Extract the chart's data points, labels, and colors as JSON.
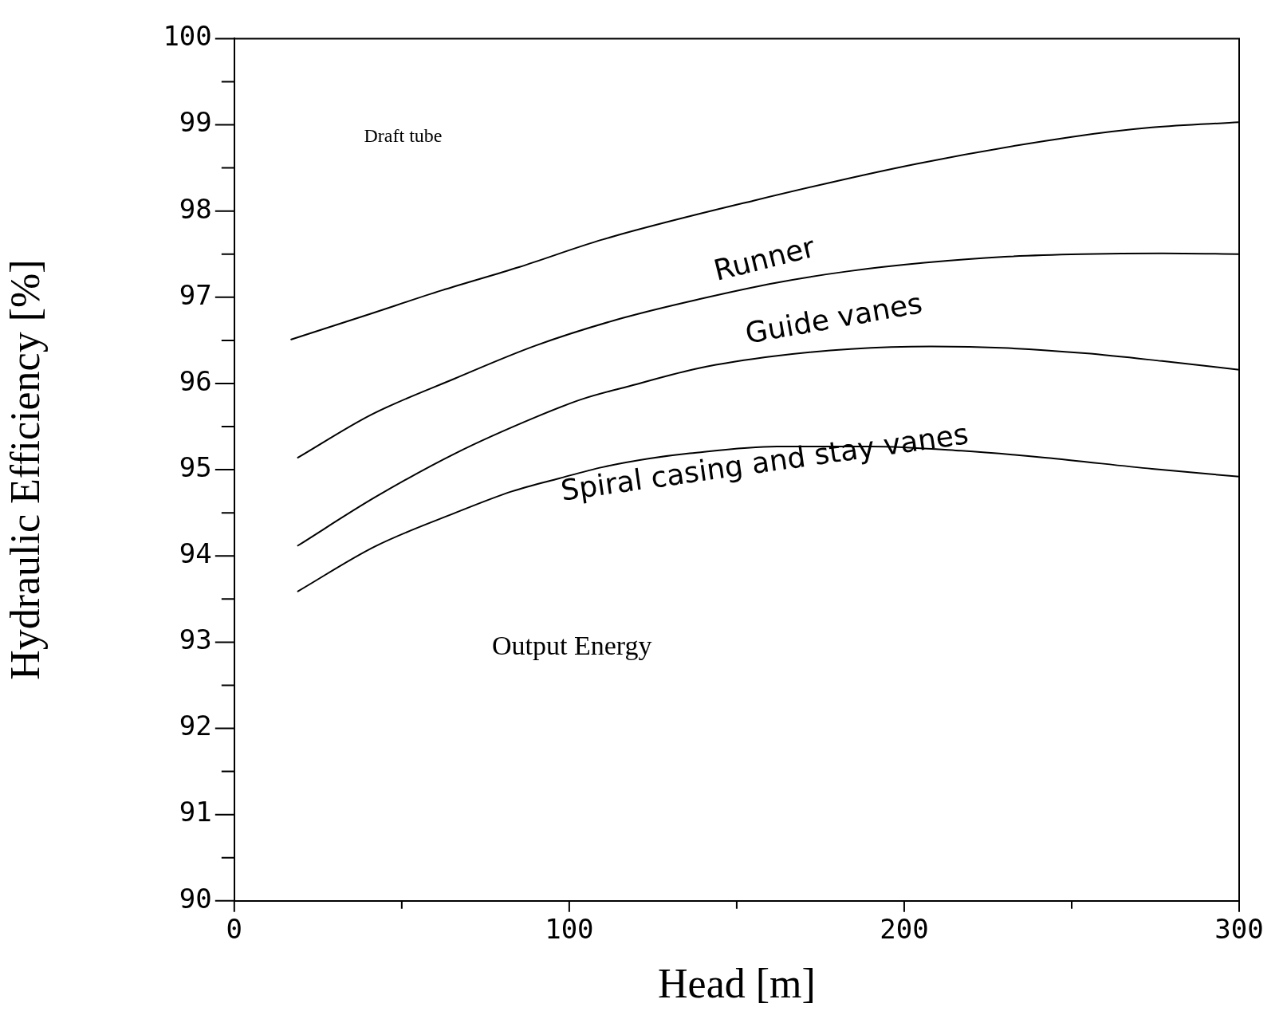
{
  "chart_data": {
    "type": "line",
    "xlabel": "Head [m]",
    "ylabel": "Hydraulic Efficiency [%]",
    "xlim": [
      0,
      300
    ],
    "ylim": [
      90,
      100
    ],
    "xticks": [
      0,
      {
        "value": 50,
        "label": null
      },
      100,
      {
        "value": 150,
        "label": null
      },
      200,
      {
        "value": 250,
        "label": null
      },
      300
    ],
    "yticks": [
      90,
      {
        "value": 90.5,
        "label": null
      },
      91,
      {
        "value": 91.5,
        "label": null
      },
      92,
      {
        "value": 92.5,
        "label": null
      },
      93,
      {
        "value": 93.5,
        "label": null
      },
      94,
      {
        "value": 94.5,
        "label": null
      },
      95,
      {
        "value": 95.5,
        "label": null
      },
      96,
      {
        "value": 96.5,
        "label": null
      },
      97,
      {
        "value": 97.5,
        "label": null
      },
      98,
      {
        "value": 98.5,
        "label": null
      },
      99,
      {
        "value": 99.5,
        "label": null
      },
      100
    ],
    "grid": false,
    "legend": false,
    "marker": "none",
    "line_style": "solid",
    "series": [
      {
        "color": "#000000",
        "x": [
          17,
          40,
          62,
          85,
          110,
          155,
          204,
          250,
          274,
          300
        ],
        "values": [
          96.51,
          96.8,
          97.08,
          97.35,
          97.67,
          98.12,
          98.55,
          98.86,
          98.97,
          99.03
        ]
      },
      {
        "color": "#000000",
        "x": [
          19,
          41,
          66,
          90,
          116,
          139,
          162,
          183,
          206,
          230,
          253,
          277,
          300
        ],
        "values": [
          95.14,
          95.64,
          96.06,
          96.44,
          96.76,
          96.98,
          97.17,
          97.3,
          97.4,
          97.47,
          97.5,
          97.51,
          97.5
        ]
      },
      {
        "color": "#000000",
        "x": [
          19,
          42,
          66,
          90,
          104,
          118,
          139,
          162,
          184,
          208,
          231,
          254,
          277,
          300
        ],
        "values": [
          94.12,
          94.68,
          95.19,
          95.61,
          95.82,
          95.97,
          96.18,
          96.32,
          96.4,
          96.43,
          96.41,
          96.35,
          96.26,
          96.16
        ]
      },
      {
        "color": "#000000",
        "x": [
          19,
          42,
          66,
          83,
          97,
          110,
          124,
          136,
          162,
          190,
          217,
          242,
          274,
          300
        ],
        "values": [
          93.59,
          94.11,
          94.5,
          94.75,
          94.9,
          95.03,
          95.13,
          95.19,
          95.27,
          95.27,
          95.22,
          95.14,
          95.01,
          94.92
        ]
      }
    ],
    "annotations": [
      "Draft tube",
      "Runner",
      "Guide vanes",
      "Spiral casing and stay vanes",
      "Output Energy"
    ]
  }
}
